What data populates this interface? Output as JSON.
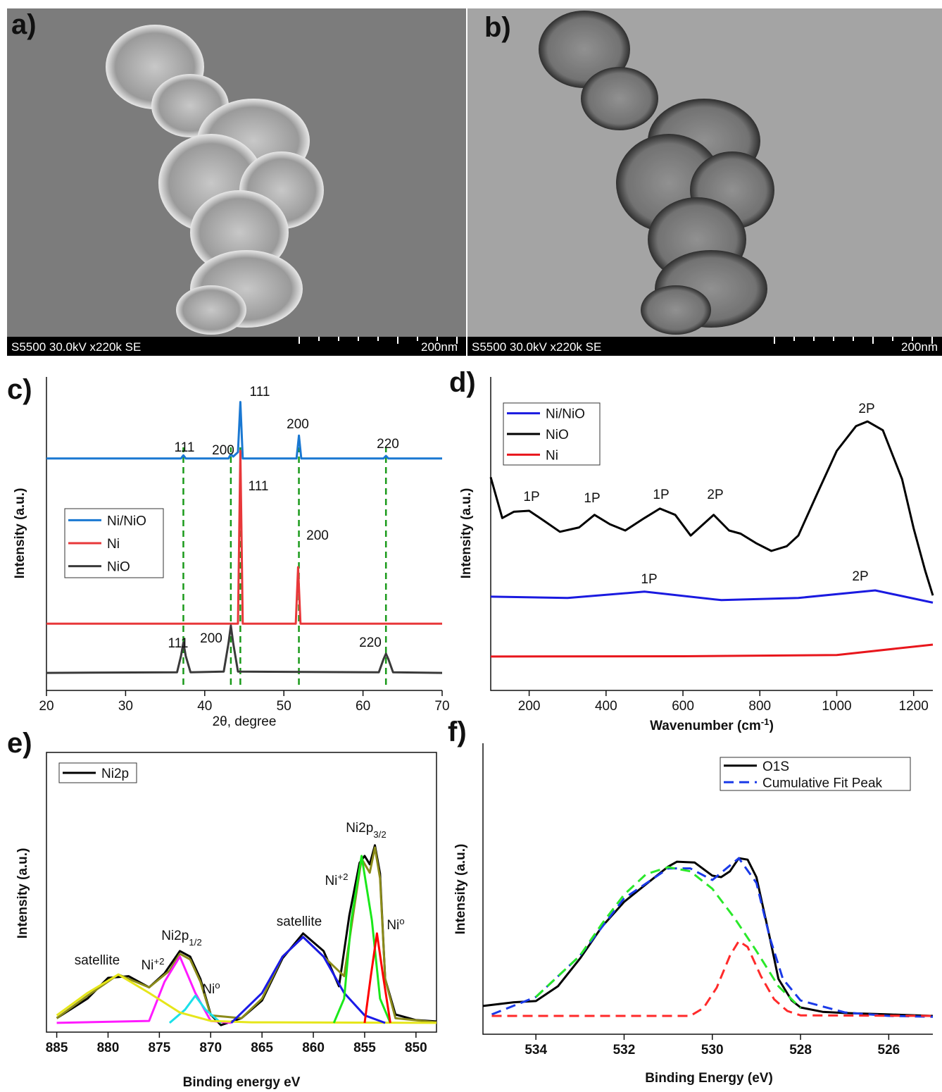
{
  "panels": [
    {
      "label": "a)",
      "caption": "S5500 30.0kV x220k SE",
      "scale": "200nm"
    },
    {
      "label": "b)",
      "caption": "S5500 30.0kV x220k SE",
      "scale": "200nm"
    }
  ],
  "chart_data": [
    {
      "type": "line",
      "label": "c)",
      "x_label": "2θ, degree",
      "y_label": "Intensity (a.u.)",
      "xlim": [
        20,
        70
      ],
      "xticks": [
        20,
        30,
        40,
        50,
        60,
        70
      ],
      "ylim": [
        0,
        100
      ],
      "reference_lines": [
        37.3,
        43.3,
        44.5,
        51.9,
        62.9
      ],
      "reference_color": "#1a9a1a",
      "series": [
        {
          "name": "Ni/NiO",
          "color": "#1a78d2",
          "x": [
            20,
            37,
            37.3,
            37.6,
            43,
            43.3,
            43.6,
            44.2,
            44.5,
            44.8,
            51.6,
            51.9,
            52.2,
            62.6,
            62.9,
            63.2,
            70
          ],
          "values": [
            74,
            74,
            75,
            74,
            74,
            75.3,
            74.6,
            76,
            92,
            74,
            74,
            81.3,
            74,
            74,
            74.8,
            74,
            74
          ]
        },
        {
          "name": "Ni",
          "color": "#e8383a",
          "x": [
            20,
            44.2,
            44.5,
            44.8,
            51.5,
            51.8,
            52.1,
            70
          ],
          "values": [
            21.3,
            21.3,
            76.4,
            21.3,
            21.3,
            39.3,
            21.3,
            21.3
          ]
        },
        {
          "name": "NiO",
          "color": "#3a3a3a",
          "x": [
            20,
            36.5,
            37,
            37.3,
            37.6,
            38.2,
            42.4,
            43,
            43.3,
            43.6,
            44.2,
            62,
            62.6,
            62.9,
            63.2,
            63.8,
            70
          ],
          "values": [
            5.6,
            5.8,
            11,
            15.3,
            11,
            5.8,
            6,
            15,
            20.7,
            15,
            6,
            5.8,
            10,
            11.7,
            10,
            5.8,
            5.6
          ]
        }
      ],
      "annotations": [
        {
          "text": "111"
        },
        {
          "text": "200"
        },
        {
          "text": "111",
          "color": "#e8161c"
        },
        {
          "text": "200",
          "color": "#e8161c"
        },
        {
          "text": "220"
        },
        {
          "text": "111",
          "color": "#e8161c"
        },
        {
          "text": "200",
          "color": "#e8161c"
        },
        {
          "text": "111"
        },
        {
          "text": "200"
        },
        {
          "text": "220"
        }
      ]
    },
    {
      "type": "line",
      "label": "d)",
      "x_label": {
        "text": "Wavenumber (cm",
        "sup": "-1",
        "tail": ")"
      },
      "y_label": "Intensity (a.u.)",
      "xlim": [
        100,
        1250
      ],
      "xticks": [
        200,
        400,
        600,
        800,
        1000,
        1200
      ],
      "ylim": [
        0,
        100
      ],
      "series": [
        {
          "name": "Ni/NiO",
          "color": "#1a1ae0",
          "x": [
            100,
            300,
            500,
            700,
            900,
            1100,
            1250
          ],
          "values": [
            29.9,
            29.5,
            31.5,
            28.8,
            29.5,
            31.9,
            28
          ]
        },
        {
          "name": "NiO",
          "color": "#000000",
          "x": [
            100,
            130,
            160,
            200,
            240,
            280,
            330,
            370,
            410,
            450,
            500,
            540,
            580,
            620,
            680,
            720,
            750,
            790,
            830,
            870,
            900,
            950,
            1000,
            1050,
            1080,
            1120,
            1170,
            1200,
            1230,
            1250
          ],
          "values": [
            68,
            55,
            57,
            57.3,
            54,
            50.6,
            52,
            56,
            53,
            51,
            55,
            58,
            56,
            49.4,
            56,
            51,
            50,
            47,
            44.5,
            46,
            49.4,
            63,
            76.4,
            84.3,
            85.8,
            83,
            67.4,
            51.7,
            38.2,
            30.3
          ]
        },
        {
          "name": "Ni",
          "color": "#e8161c",
          "x": [
            100,
            600,
            1000,
            1250
          ],
          "values": [
            10.8,
            10.9,
            11.3,
            14.6
          ]
        }
      ],
      "annotations": [
        {
          "text": "1P"
        },
        {
          "text": "1P"
        },
        {
          "text": "1P"
        },
        {
          "text": "2P"
        },
        {
          "text": "2P"
        },
        {
          "text": "1P"
        },
        {
          "text": "2P"
        }
      ]
    },
    {
      "type": "line",
      "label": "e)",
      "x_label": "Binding energy eV",
      "y_label": "Intensity (a.u.)",
      "xlim": [
        886,
        848
      ],
      "xticks": [
        885,
        880,
        875,
        870,
        865,
        860,
        855,
        850
      ],
      "ylim": [
        0,
        100
      ],
      "series": [
        {
          "name": "Ni2p",
          "color": "#000000",
          "x": [
            885,
            882,
            880,
            878,
            876,
            874.5,
            873,
            872,
            871,
            870,
            869,
            867,
            865,
            863,
            861,
            859,
            857.5,
            856.5,
            855.5,
            855,
            854.5,
            854,
            853.5,
            853,
            852,
            850,
            848
          ],
          "values": [
            5,
            12,
            19.4,
            20,
            16,
            21,
            29,
            27,
            19,
            6.3,
            2.5,
            5,
            11.3,
            26.4,
            35.3,
            29,
            16.4,
            41.6,
            60.5,
            63,
            60,
            66.8,
            56.7,
            19,
            6.3,
            4.3,
            3.8
          ]
        },
        {
          "color": "#8b8b1a",
          "x": [
            885,
            882,
            879,
            876,
            874,
            873,
            872,
            871,
            870,
            867,
            865,
            863,
            861,
            859,
            857,
            856,
            855.3,
            854.5,
            854,
            853.5,
            853,
            852,
            848
          ],
          "values": [
            5,
            13,
            20.6,
            16,
            22,
            28,
            26,
            18,
            6,
            5,
            12,
            27,
            34,
            27,
            20,
            45,
            62,
            57,
            66,
            55,
            19,
            5,
            3.5
          ]
        },
        {
          "color": "#ff1aff",
          "x": [
            885,
            876,
            874.5,
            873,
            871.5,
            870,
            868
          ],
          "values": [
            3.3,
            4,
            18,
            27,
            14,
            4,
            3.3
          ]
        },
        {
          "color": "#1ae0e8",
          "x": [
            874,
            872.5,
            871.5,
            870.5,
            869
          ],
          "values": [
            3.3,
            8,
            13,
            8,
            3.3
          ]
        },
        {
          "color": "#e6e61a",
          "x": [
            885,
            882,
            879,
            876,
            873,
            870,
            866,
            848
          ],
          "values": [
            6,
            14,
            20.6,
            14,
            7,
            4,
            3.5,
            3.3
          ]
        },
        {
          "color": "#1a1ae8",
          "x": [
            868,
            865,
            863,
            861,
            859,
            857,
            855,
            853
          ],
          "values": [
            3.3,
            14,
            27,
            34,
            27,
            14,
            6,
            3.3
          ]
        },
        {
          "color": "#1ae81a",
          "x": [
            858,
            857,
            856.3,
            855.3,
            854.3,
            853.5,
            852.5
          ],
          "values": [
            3.3,
            12,
            40,
            63,
            40,
            12,
            3.3
          ]
        },
        {
          "color": "#ff0000",
          "x": [
            855,
            854.4,
            853.8,
            853.2,
            852.5
          ],
          "values": [
            3.3,
            20,
            35.3,
            20,
            3.3
          ]
        }
      ],
      "annotations": [
        {
          "text": "satellite"
        },
        {
          "text": "Ni",
          "sup": "+2"
        },
        {
          "text": "Ni2p",
          "sub": "1/2"
        },
        {
          "text": "Ni",
          "sup": "o"
        },
        {
          "text": "satellite"
        },
        {
          "text": "Ni",
          "sup": "+2"
        },
        {
          "text": "Ni2p",
          "sub": "3/2"
        },
        {
          "text": "Ni",
          "sup": "o"
        }
      ]
    },
    {
      "type": "line",
      "label": "f)",
      "x_label": "Binding Energy (eV)",
      "y_label": "Intensity (a.u.)",
      "xlim": [
        535.2,
        525
      ],
      "xticks": [
        534,
        532,
        530,
        528,
        526
      ],
      "ylim": [
        0,
        100
      ],
      "series": [
        {
          "name": "O1S",
          "color": "#000000",
          "x": [
            535.2,
            534.5,
            534,
            533.5,
            533,
            532.5,
            532,
            531.5,
            531,
            530.8,
            530.4,
            530,
            529.8,
            529.6,
            529.4,
            529.2,
            529,
            528.7,
            528.5,
            528.2,
            528,
            527.5,
            527,
            526,
            525
          ],
          "values": [
            9.7,
            11,
            11.4,
            16.5,
            26,
            37,
            45.5,
            51.6,
            57.6,
            59.3,
            59,
            54.5,
            54,
            56,
            60.5,
            60,
            54,
            33.4,
            19,
            11.6,
            9.2,
            7.7,
            7.3,
            6.8,
            6.3
          ]
        },
        {
          "name": "Cumulative Fit Peak",
          "color": "#1a3ae8",
          "style": "dashed",
          "x": [
            535,
            534,
            533,
            532,
            531,
            530.5,
            530,
            529.4,
            529,
            528.7,
            528.4,
            528,
            527,
            526,
            525
          ],
          "values": [
            6.8,
            12.8,
            27,
            46.7,
            57,
            57,
            53,
            60.5,
            52,
            33.4,
            19,
            11.6,
            7.5,
            6.3,
            6
          ]
        },
        {
          "color": "#2ae82a",
          "style": "dashed",
          "x": [
            534,
            533,
            532.5,
            532,
            531.5,
            531,
            530.5,
            530,
            529.5,
            529,
            528.5,
            528
          ],
          "values": [
            12.8,
            27,
            38,
            48,
            55,
            57.4,
            56,
            50,
            40,
            28.6,
            16.5,
            9
          ]
        },
        {
          "color": "#ff2a2a",
          "style": "dashed",
          "x": [
            535,
            530.5,
            530.2,
            529.9,
            529.6,
            529.4,
            529.2,
            528.9,
            528.6,
            528.3,
            528,
            525
          ],
          "values": [
            6.3,
            6.3,
            9,
            16,
            27,
            32,
            30,
            20,
            12,
            8,
            6.5,
            6.3
          ]
        }
      ]
    }
  ]
}
